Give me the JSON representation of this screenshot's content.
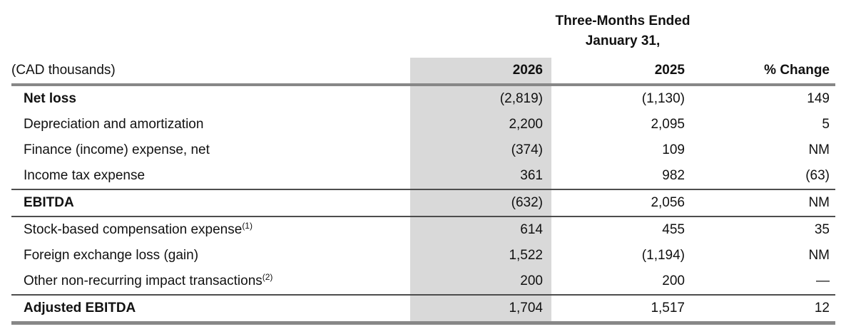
{
  "header": {
    "period_line1": "Three-Months Ended",
    "period_line2": "January 31,",
    "unit_label": "(CAD thousands)",
    "columns": {
      "y2026": "2026",
      "y2025": "2025",
      "change": "% Change"
    }
  },
  "table": {
    "rows": [
      {
        "label": "Net loss",
        "y2026": "(2,819)",
        "y2025": "(1,130)",
        "change": "149"
      },
      {
        "label": "Depreciation and amortization",
        "y2026": "2,200",
        "y2025": "2,095",
        "change": "5"
      },
      {
        "label": "Finance (income) expense, net",
        "y2026": "(374)",
        "y2025": "109",
        "change": "NM"
      },
      {
        "label": "Income tax expense",
        "y2026": "361",
        "y2025": "982",
        "change": "(63)"
      },
      {
        "label": "EBITDA",
        "y2026": "(632)",
        "y2025": "2,056",
        "change": "NM"
      },
      {
        "label": "Stock-based compensation expense",
        "sup": "(1)",
        "y2026": "614",
        "y2025": "455",
        "change": "35"
      },
      {
        "label": "Foreign exchange loss (gain)",
        "y2026": "1,522",
        "y2025": "(1,194)",
        "change": "NM"
      },
      {
        "label": "Other non-recurring impact transactions",
        "sup": "(2)",
        "y2026": "200",
        "y2025": "200",
        "change": "—"
      },
      {
        "label": "Adjusted EBITDA",
        "y2026": "1,704",
        "y2025": "1,517",
        "change": "12"
      }
    ]
  },
  "colors": {
    "highlight_column_bg": "#d9d9d9",
    "thick_rule": "#878787",
    "thin_rule": "#4d4d4d",
    "text": "#111111",
    "background": "#ffffff"
  }
}
